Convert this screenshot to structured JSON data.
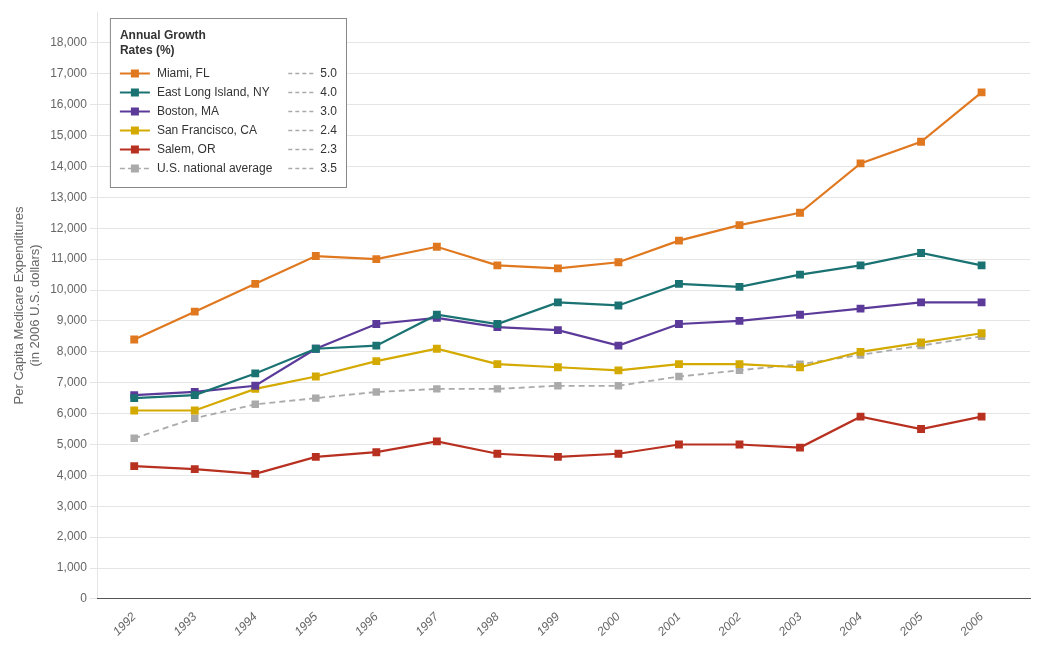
{
  "chart_data": {
    "type": "line",
    "x": [
      1992,
      1993,
      1994,
      1995,
      1996,
      1997,
      1998,
      1999,
      2000,
      2001,
      2002,
      2003,
      2004,
      2005,
      2006
    ],
    "series": [
      {
        "name": "Miami, FL",
        "color": "#E07820",
        "line_style": "solid",
        "marker": "square",
        "rate": "5.0",
        "values": [
          8400,
          9300,
          10200,
          11100,
          11000,
          11400,
          10800,
          10700,
          10900,
          11600,
          12100,
          12500,
          14100,
          14800,
          16400
        ]
      },
      {
        "name": "East Long Island, NY",
        "color": "#1A7272",
        "line_style": "solid",
        "marker": "square",
        "rate": "4.0",
        "values": [
          6500,
          6600,
          7300,
          8100,
          8200,
          9200,
          8900,
          9600,
          9500,
          10200,
          10100,
          10500,
          10800,
          11200,
          10800
        ]
      },
      {
        "name": "Boston, MA",
        "color": "#5B3A9A",
        "line_style": "solid",
        "marker": "square",
        "rate": "3.0",
        "values": [
          6600,
          6700,
          6900,
          8100,
          8900,
          9100,
          8800,
          8700,
          8200,
          8900,
          9000,
          9200,
          9400,
          9600,
          9600
        ]
      },
      {
        "name": "San Francisco, CA",
        "color": "#D4AA00",
        "line_style": "solid",
        "marker": "square",
        "rate": "2.4",
        "values": [
          6100,
          6100,
          6800,
          7200,
          7700,
          8100,
          7600,
          7500,
          7400,
          7600,
          7600,
          7500,
          8000,
          8300,
          8600
        ]
      },
      {
        "name": "Salem, OR",
        "color": "#B83020",
        "line_style": "solid",
        "marker": "square",
        "rate": "2.3",
        "values": [
          4300,
          4200,
          4050,
          4600,
          4750,
          5100,
          4700,
          4600,
          4700,
          5000,
          5000,
          4900,
          5900,
          5500,
          5900
        ]
      },
      {
        "name": "U.S. national average",
        "color": "#AAAAAA",
        "line_style": "dashed",
        "marker": "square",
        "rate": "3.5",
        "values": [
          5200,
          5850,
          6300,
          6500,
          6700,
          6800,
          6800,
          6900,
          6900,
          7200,
          7400,
          7600,
          7900,
          8200,
          8500
        ]
      }
    ],
    "ylabel": "Per Capita Medicare Expenditures\n(in 2006 U.S. dollars)",
    "xlim": [
      1991.4,
      2006.8
    ],
    "xticks": [
      1992,
      1993,
      1994,
      1995,
      1996,
      1997,
      1998,
      1999,
      2000,
      2001,
      2002,
      2003,
      2004,
      2005,
      2006
    ],
    "ylim": [
      0,
      19000
    ],
    "yticks": [
      0,
      {
        "value": 1000,
        "label": "1,000"
      },
      {
        "value": 2000,
        "label": "2,000"
      },
      {
        "value": 3000,
        "label": "3,000"
      },
      {
        "value": 4000,
        "label": "4,000"
      },
      {
        "value": 5000,
        "label": "5,000"
      },
      {
        "value": 6000,
        "label": "6,000"
      },
      {
        "value": 7000,
        "label": "7,000"
      },
      {
        "value": 8000,
        "label": "8,000"
      },
      {
        "value": 9000,
        "label": "9,000"
      },
      {
        "value": 10000,
        "label": "10,000"
      },
      {
        "value": 11000,
        "label": "11,000"
      },
      {
        "value": 12000,
        "label": "12,000"
      },
      {
        "value": 13000,
        "label": "13,000"
      },
      {
        "value": 14000,
        "label": "14,000"
      },
      {
        "value": 15000,
        "label": "15,000"
      },
      {
        "value": 16000,
        "label": "16,000"
      },
      {
        "value": 17000,
        "label": "17,000"
      },
      {
        "value": 18000,
        "label": "18,000"
      }
    ],
    "grid": "y",
    "legend": "upper left",
    "legend_title": "Annual Growth\nRates (%)"
  }
}
